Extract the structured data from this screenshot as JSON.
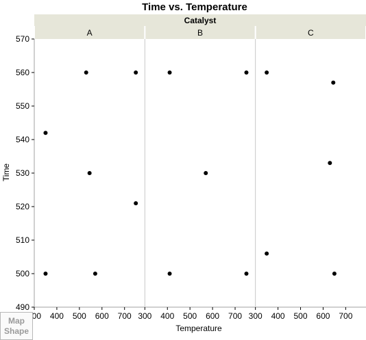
{
  "chart_data": {
    "type": "scatter",
    "title": "Time vs. Temperature",
    "group_by_label": "Catalyst",
    "panels": [
      {
        "name": "A",
        "points": [
          {
            "x": 350,
            "y": 542
          },
          {
            "x": 350,
            "y": 500
          },
          {
            "x": 530,
            "y": 560
          },
          {
            "x": 545,
            "y": 530
          },
          {
            "x": 570,
            "y": 500
          },
          {
            "x": 750,
            "y": 560
          },
          {
            "x": 750,
            "y": 521
          }
        ]
      },
      {
        "name": "B",
        "points": [
          {
            "x": 410,
            "y": 560
          },
          {
            "x": 410,
            "y": 500
          },
          {
            "x": 570,
            "y": 530
          },
          {
            "x": 750,
            "y": 560
          },
          {
            "x": 750,
            "y": 500
          }
        ]
      },
      {
        "name": "C",
        "points": [
          {
            "x": 350,
            "y": 560
          },
          {
            "x": 350,
            "y": 506
          },
          {
            "x": 630,
            "y": 533
          },
          {
            "x": 645,
            "y": 557
          },
          {
            "x": 650,
            "y": 500
          }
        ]
      }
    ],
    "xlabel": "Temperature",
    "ylabel": "Time",
    "xlim": [
      300,
      790
    ],
    "ylim": [
      490,
      570
    ],
    "xticks": [
      300,
      400,
      500,
      600,
      700
    ],
    "yticks": [
      490,
      500,
      510,
      520,
      530,
      540,
      550,
      560,
      570
    ],
    "grid": false,
    "colors": {
      "point": "#000000",
      "header_fill": "#e6e6d9",
      "panel_divider": "#c8c8c8",
      "frame": "#a0a0a0"
    }
  },
  "map_shape": {
    "line1": "Map",
    "line2": "Shape"
  }
}
